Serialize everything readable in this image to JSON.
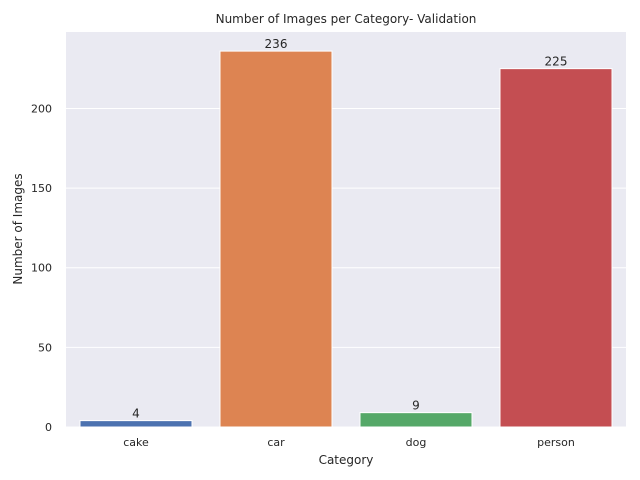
{
  "chart_data": {
    "type": "bar",
    "title": "Number of Images per Category- Validation",
    "xlabel": "Category",
    "ylabel": "Number of Images",
    "categories": [
      "cake",
      "car",
      "dog",
      "person"
    ],
    "values": [
      4,
      236,
      9,
      225
    ],
    "data_labels": [
      "4",
      "236",
      "9",
      "225"
    ],
    "colors": [
      "#4c72b0",
      "#dd8452",
      "#55a868",
      "#c44e52"
    ],
    "ylim": [
      0,
      248
    ],
    "yticks": [
      0,
      50,
      100,
      150,
      200
    ],
    "grid": true,
    "background": "#eaeaf2"
  }
}
